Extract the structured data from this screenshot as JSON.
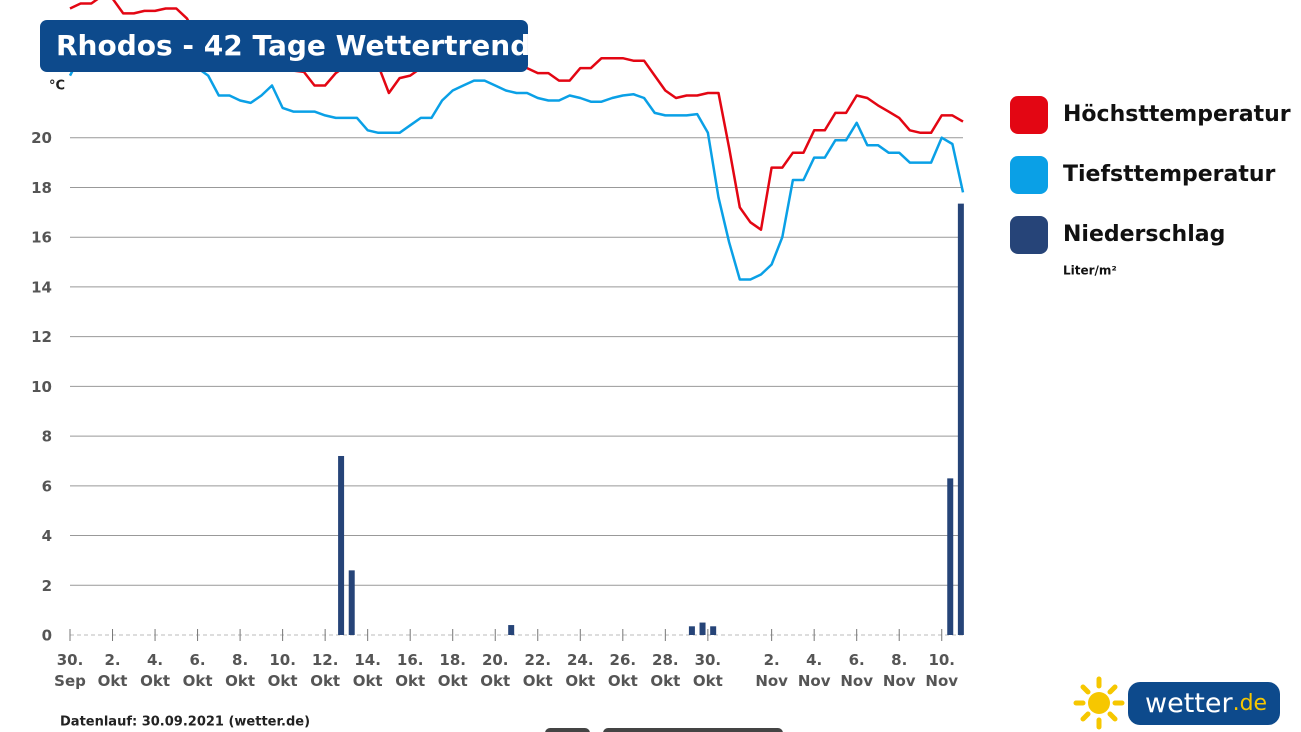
{
  "chart_data": {
    "type": "line",
    "title": "Rhodos - 42 Tage Wettertrend",
    "y_unit": "°C",
    "x": [
      0,
      0.5,
      1,
      1.5,
      2,
      2.5,
      3,
      3.5,
      4,
      4.5,
      5,
      5.5,
      6,
      6.5,
      7,
      7.5,
      8,
      8.5,
      9,
      9.5,
      10,
      10.5,
      11,
      11.5,
      12,
      12.5,
      13,
      13.5,
      14,
      14.5,
      15,
      15.5,
      16,
      16.5,
      17,
      17.5,
      18,
      18.5,
      19,
      19.5,
      20,
      20.5,
      21,
      21.5,
      22,
      22.5,
      23,
      23.5,
      24,
      24.5,
      25,
      25.5,
      26,
      26.5,
      27,
      27.5,
      28,
      28.5,
      29,
      29.5,
      30,
      30.5,
      31,
      31.5,
      32,
      32.5,
      33,
      33.5,
      34,
      34.5,
      35,
      35.5,
      36,
      36.5,
      37,
      37.5,
      38,
      38.5,
      39,
      39.5,
      40,
      40.5,
      41,
      41.5,
      42
    ],
    "series": [
      {
        "name": "Höchsttemperatur",
        "color": "#e30613",
        "values": [
          25.2,
          25.4,
          25.4,
          25.7,
          25.6,
          25.0,
          25.0,
          25.1,
          25.1,
          25.2,
          25.2,
          24.8,
          24.0,
          23.6,
          23.4,
          23.3,
          23.2,
          23.2,
          23.3,
          23.0,
          22.9,
          22.7,
          22.65,
          22.1,
          22.1,
          22.6,
          22.9,
          22.9,
          22.9,
          22.9,
          21.8,
          22.4,
          22.5,
          22.8,
          23.0,
          23.2,
          23.3,
          23.4,
          23.4,
          23.3,
          23.2,
          23.1,
          23.0,
          22.8,
          22.6,
          22.6,
          22.3,
          22.3,
          22.8,
          22.8,
          23.2,
          23.2,
          23.2,
          23.1,
          23.1,
          22.5,
          21.9,
          21.6,
          21.7,
          21.7,
          21.8,
          21.8,
          19.6,
          17.2,
          16.6,
          16.3,
          18.8,
          18.8,
          19.4,
          19.4,
          20.3,
          20.3,
          21.0,
          21.0,
          21.7,
          21.6,
          21.3,
          21.05,
          20.8,
          20.3,
          20.2,
          20.2,
          20.9,
          20.9,
          20.65
        ]
      },
      {
        "name": "Tiefsttemperatur",
        "color": "#0aa0e6",
        "values": [
          22.5,
          23.3,
          23.8,
          24.0,
          24.0,
          23.8,
          23.6,
          23.5,
          23.4,
          23.4,
          23.2,
          23.0,
          22.8,
          22.5,
          21.7,
          21.7,
          21.5,
          21.4,
          21.7,
          22.1,
          21.2,
          21.05,
          21.05,
          21.05,
          20.9,
          20.8,
          20.8,
          20.8,
          20.3,
          20.2,
          20.2,
          20.2,
          20.5,
          20.8,
          20.8,
          21.5,
          21.9,
          22.1,
          22.3,
          22.3,
          22.1,
          21.9,
          21.8,
          21.8,
          21.6,
          21.5,
          21.5,
          21.7,
          21.6,
          21.45,
          21.45,
          21.6,
          21.7,
          21.75,
          21.6,
          21.0,
          20.9,
          20.9,
          20.9,
          20.95,
          20.2,
          17.6,
          15.8,
          14.3,
          14.3,
          14.5,
          14.9,
          16.0,
          18.3,
          18.3,
          19.2,
          19.2,
          19.9,
          19.9,
          20.6,
          19.7,
          19.7,
          19.4,
          19.4,
          19.0,
          19.0,
          19.0,
          20.0,
          19.75,
          17.8
        ]
      },
      {
        "name": "Niederschlag",
        "color": "#264478",
        "type": "bar",
        "unit": "Liter/m²",
        "x": [
          12.75,
          13.25,
          20.75,
          29.25,
          29.75,
          30.25,
          41.4,
          41.9
        ],
        "values": [
          7.2,
          2.6,
          0.4,
          0.35,
          0.5,
          0.35,
          6.3,
          17.35
        ]
      }
    ],
    "xlim": [
      0,
      42
    ],
    "xticks": [
      {
        "value": 0,
        "label": "30. Sep"
      },
      {
        "value": 2,
        "label": "2. Okt"
      },
      {
        "value": 4,
        "label": "4. Okt"
      },
      {
        "value": 6,
        "label": "6. Okt"
      },
      {
        "value": 8,
        "label": "8. Okt"
      },
      {
        "value": 10,
        "label": "10. Okt"
      },
      {
        "value": 12,
        "label": "12. Okt"
      },
      {
        "value": 14,
        "label": "14. Okt"
      },
      {
        "value": 16,
        "label": "16. Okt"
      },
      {
        "value": 18,
        "label": "18. Okt"
      },
      {
        "value": 20,
        "label": "20. Okt"
      },
      {
        "value": 22,
        "label": "22. Okt"
      },
      {
        "value": 24,
        "label": "24. Okt"
      },
      {
        "value": 26,
        "label": "26. Okt"
      },
      {
        "value": 28,
        "label": "28. Okt"
      },
      {
        "value": 30,
        "label": "30. Okt"
      },
      {
        "value": 33,
        "label": "2. Nov"
      },
      {
        "value": 35,
        "label": "4. Nov"
      },
      {
        "value": 37,
        "label": "6. Nov"
      },
      {
        "value": 39,
        "label": "8. Nov"
      },
      {
        "value": 41,
        "label": "10. Nov"
      }
    ],
    "ylim": [
      0,
      25.5
    ],
    "yticks": [
      0,
      2,
      4,
      6,
      8,
      10,
      12,
      14,
      16,
      18,
      20
    ],
    "grid": true,
    "legend": "right",
    "footer": "Datenlauf: 30.09.2021 (wetter.de)",
    "logo": {
      "text": "wetter",
      "suffix": ".de"
    }
  }
}
